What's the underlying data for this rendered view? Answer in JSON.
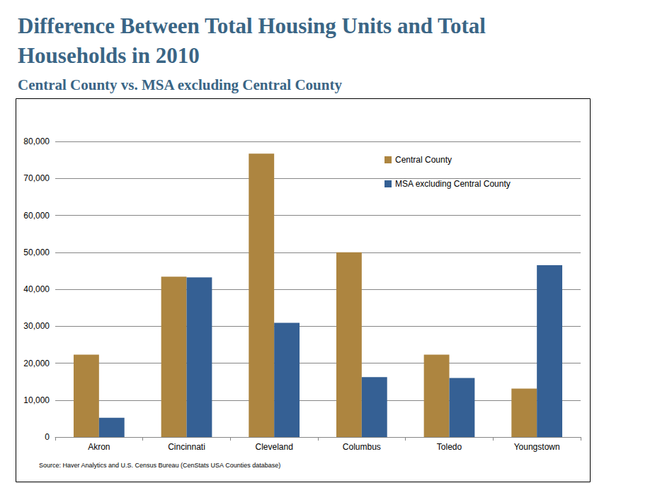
{
  "chart_data": {
    "type": "bar",
    "title": "Difference Between Total Housing Units and Total Households in 2010",
    "subtitle": "Central County vs. MSA excluding Central County",
    "annotations": [
      "Source: Haver Analytics and U.S. Census Bureau (CenStats USA Counties database)"
    ],
    "categories": [
      "Akron",
      "Cincinnati",
      "Cleveland",
      "Columbus",
      "Toledo",
      "Youngstown"
    ],
    "series": [
      {
        "name": "Central County",
        "color": "#ad8540",
        "values": [
          22300,
          43400,
          76700,
          50000,
          22300,
          13100
        ]
      },
      {
        "name": "MSA excluding Central County",
        "color": "#356094",
        "values": [
          5200,
          43200,
          30900,
          16200,
          16000,
          46500
        ]
      }
    ],
    "ylim": [
      0,
      80000
    ],
    "yticks": [
      0,
      {
        "value": 10000,
        "label": "10,000"
      },
      {
        "value": 20000,
        "label": "20,000"
      },
      {
        "value": 30000,
        "label": "30,000"
      },
      {
        "value": 40000,
        "label": "40,000"
      },
      {
        "value": 50000,
        "label": "50,000"
      },
      {
        "value": 60000,
        "label": "60,000"
      },
      {
        "value": 70000,
        "label": "70,000"
      },
      {
        "value": 80000,
        "label": "80,000"
      }
    ],
    "grid": true,
    "legend": "upper right"
  }
}
